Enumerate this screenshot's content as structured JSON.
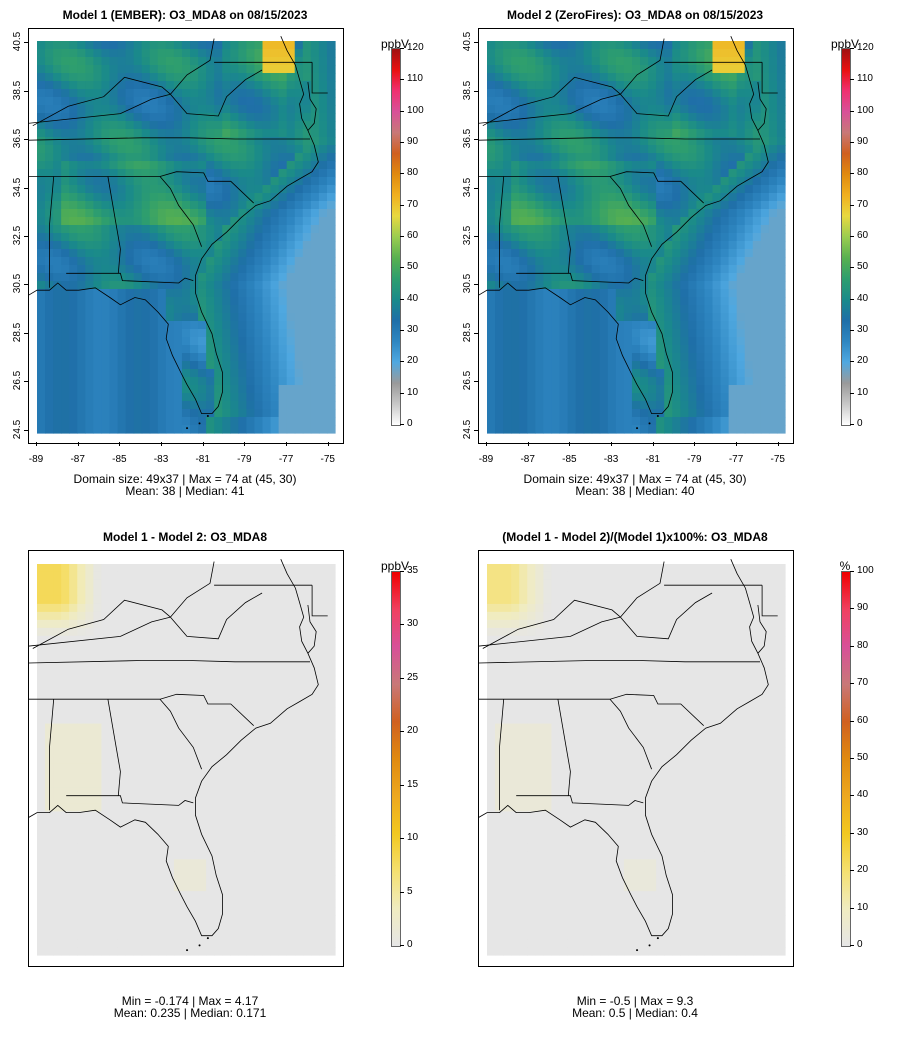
{
  "panels": [
    {
      "id": "p1",
      "title": "Model 1 (EMBER): O3_MDA8 on 08/15/2023",
      "variant": "conc",
      "unit": "ppbV",
      "scale_max": 120,
      "scale_ticks": [
        "0",
        "10",
        "20",
        "30",
        "40",
        "50",
        "60",
        "70",
        "80",
        "90",
        "100",
        "110",
        "120"
      ],
      "stats": [
        "Domain size: 49x37 | Max = 74 at (45, 30)",
        "Mean: 38 |  Median: 41"
      ],
      "yticks": [
        "24.5",
        "26.5",
        "28.5",
        "30.5",
        "32.5",
        "34.5",
        "36.5",
        "38.5",
        "40.5"
      ],
      "xticks": [
        "-89",
        "-87",
        "-85",
        "-83",
        "-81",
        "-79",
        "-77",
        "-75"
      ]
    },
    {
      "id": "p2",
      "title": "Model 2 (ZeroFires): O3_MDA8 on 08/15/2023",
      "variant": "conc",
      "unit": "ppbV",
      "scale_max": 120,
      "scale_ticks": [
        "0",
        "10",
        "20",
        "30",
        "40",
        "50",
        "60",
        "70",
        "80",
        "90",
        "100",
        "110",
        "120"
      ],
      "stats": [
        "Domain size: 49x37 | Max = 74 at (45, 30)",
        "Mean: 38 |  Median: 40"
      ],
      "yticks": [
        "24.5",
        "26.5",
        "28.5",
        "30.5",
        "32.5",
        "34.5",
        "36.5",
        "38.5",
        "40.5"
      ],
      "xticks": [
        "-89",
        "-87",
        "-85",
        "-83",
        "-81",
        "-79",
        "-77",
        "-75"
      ]
    },
    {
      "id": "p3",
      "title": "Model 1 - Model 2: O3_MDA8",
      "variant": "diff",
      "unit": "ppbV",
      "scale_max": 35,
      "scale_ticks": [
        "0",
        "5",
        "10",
        "15",
        "20",
        "25",
        "30",
        "35"
      ],
      "stats": [
        "Min = -0.174 | Max = 4.17",
        "Mean: 0.235 |  Median: 0.171"
      ]
    },
    {
      "id": "p4",
      "title": "(Model 1 - Model 2)/(Model 1)x100%: O3_MDA8",
      "variant": "pct",
      "unit": "%",
      "scale_max": 100,
      "scale_ticks": [
        "0",
        "10",
        "20",
        "30",
        "40",
        "50",
        "60",
        "70",
        "80",
        "90",
        "100"
      ],
      "stats": [
        "Min = -0.5 | Max = 9.3",
        "Mean: 0.5 |  Median: 0.4"
      ]
    }
  ],
  "colors": {
    "conc_scale": [
      "#ffffff",
      "#c8c8c8",
      "#9a9a9a",
      "#4fa8e0",
      "#2e86c1",
      "#1f6fa8",
      "#1a8a8a",
      "#2e9e6e",
      "#58b050",
      "#9acd50",
      "#e8d840",
      "#f0b020",
      "#e08a10",
      "#d06020",
      "#c87878",
      "#d85098",
      "#f03070",
      "#e81010",
      "#a01010"
    ],
    "diff_scale": [
      "#e6e6e6",
      "#f0ecc0",
      "#f5e070",
      "#f2c820",
      "#eda820",
      "#e08a10",
      "#d06020",
      "#c87878",
      "#d85098",
      "#f04060",
      "#f00000"
    ],
    "map_background": "#e6e6e6"
  }
}
